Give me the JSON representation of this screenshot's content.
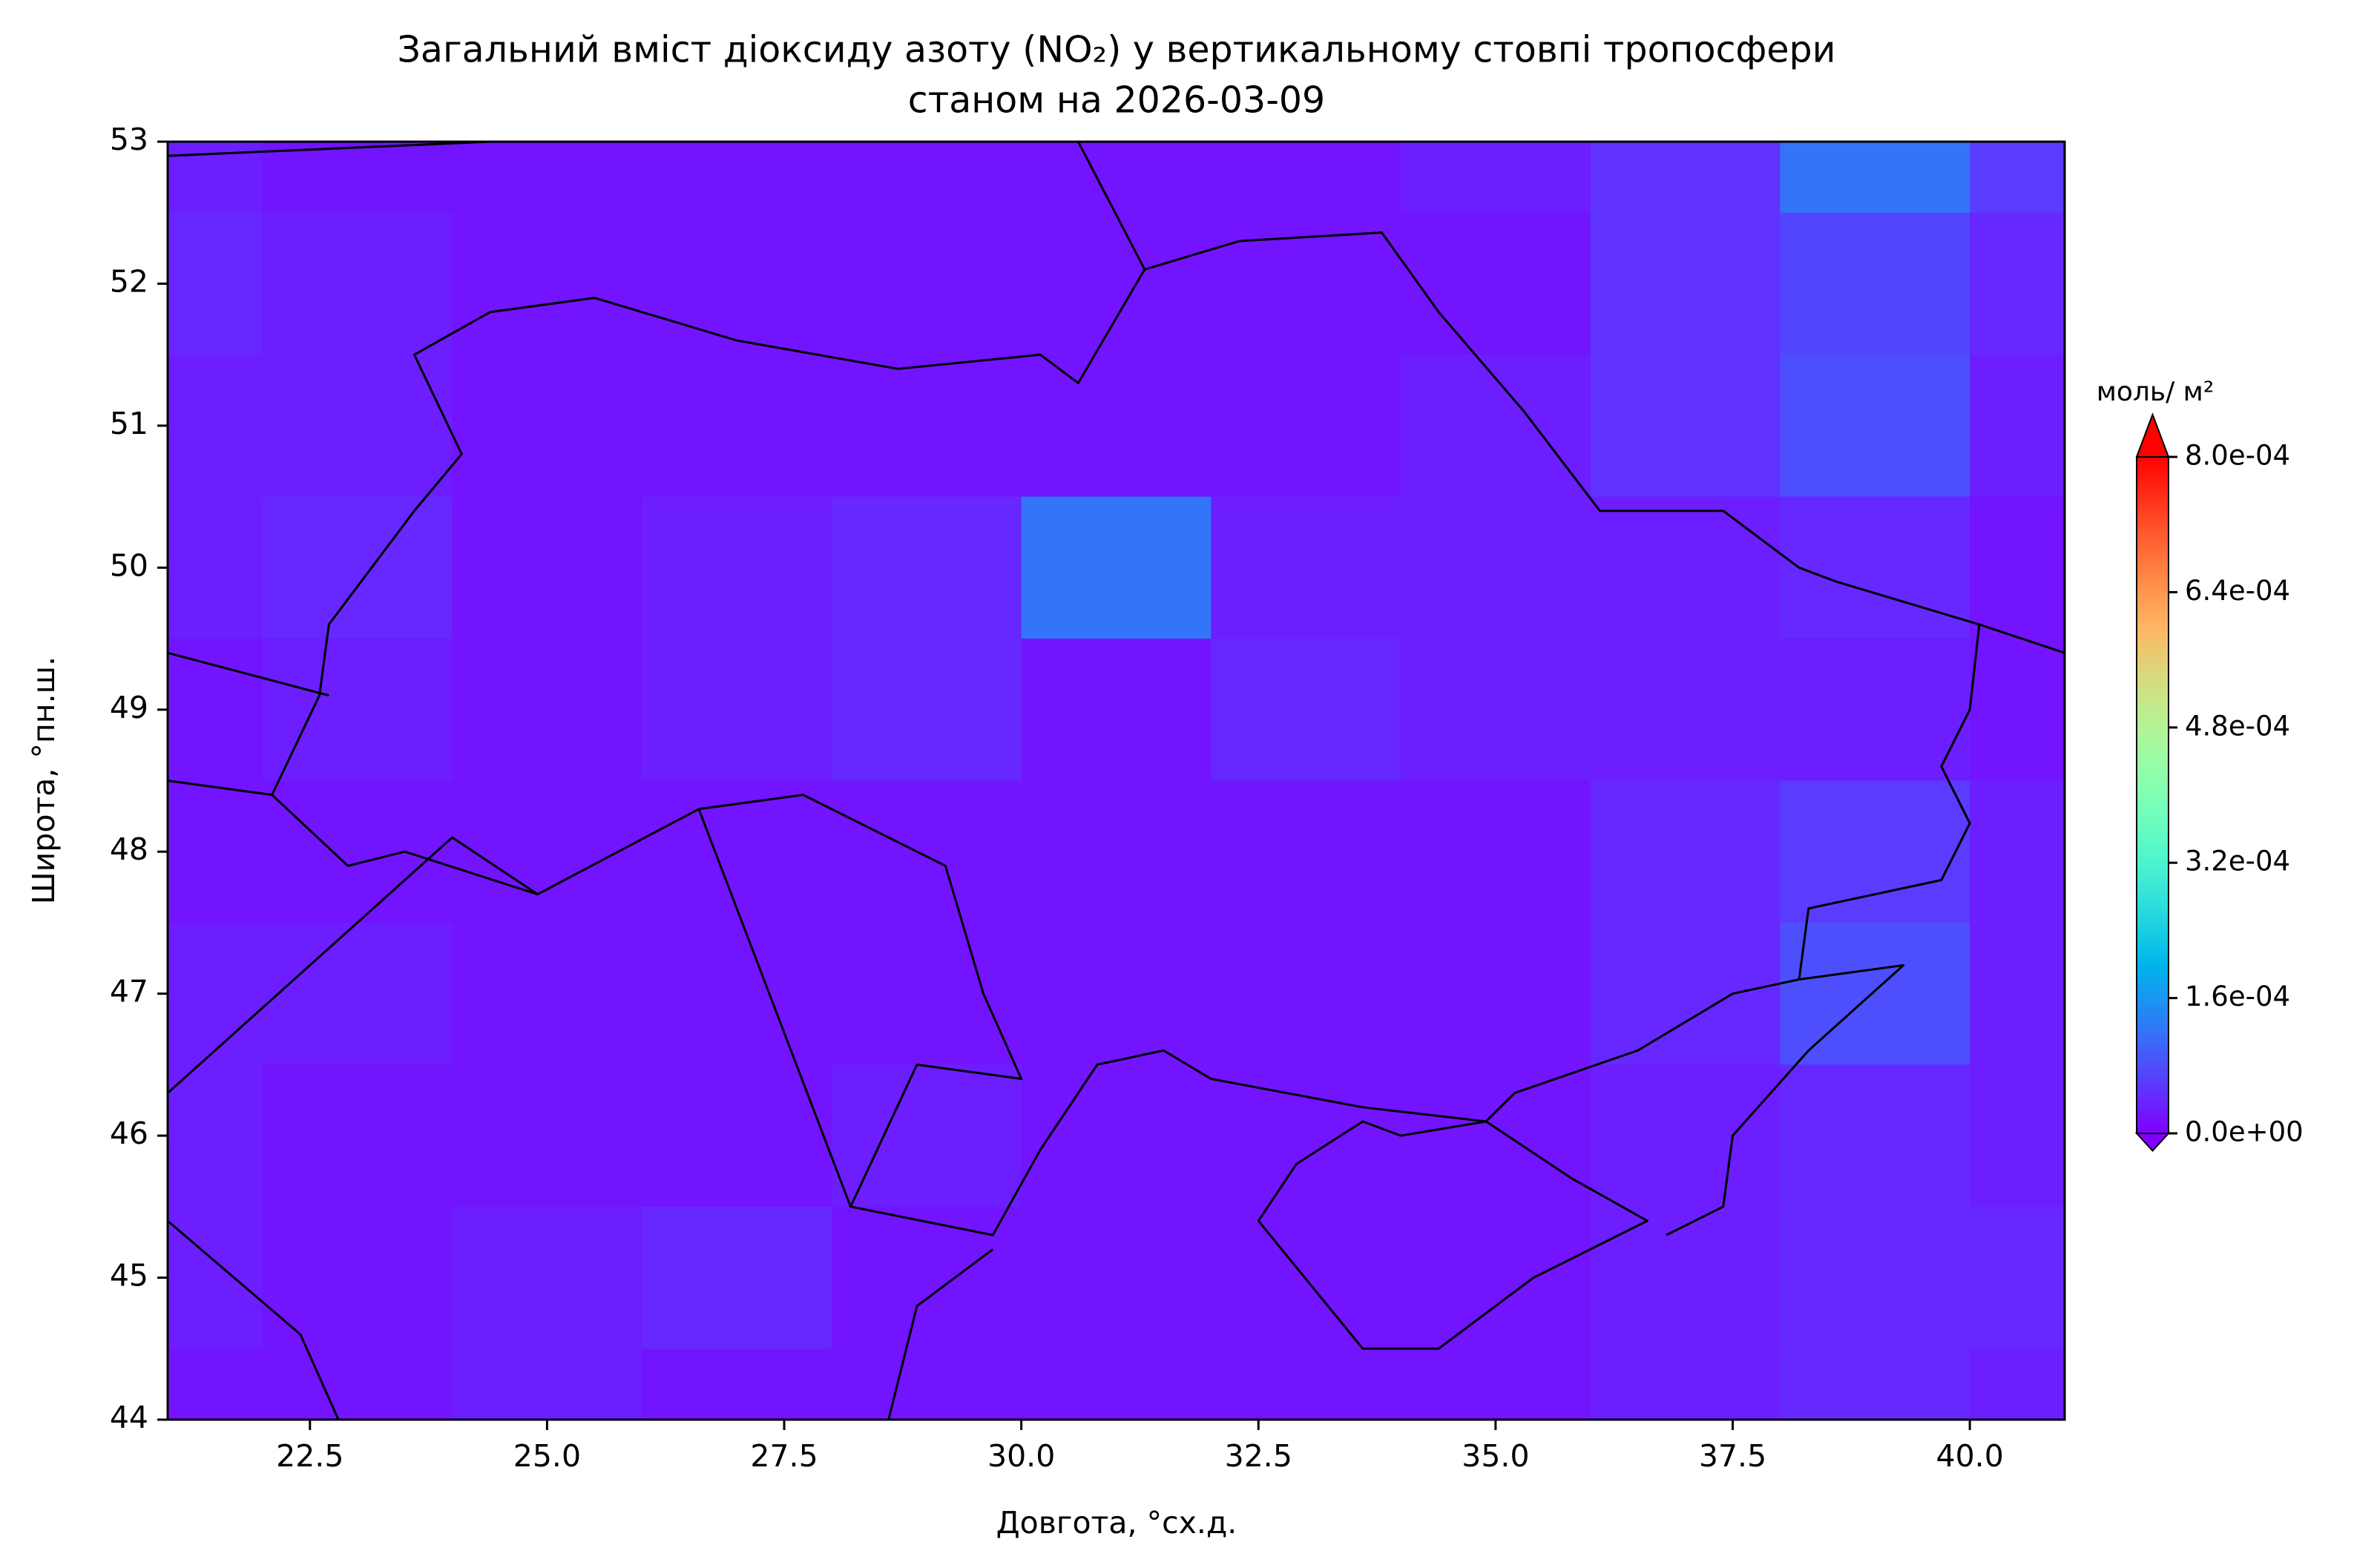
{
  "chart_data": {
    "type": "contour",
    "title": "Загальний вміст діоксиду азоту (NO₂) у вертикальному стовпі тропосфери",
    "subtitle": "станом на 2026-03-09",
    "xlabel": "Довгота, °сх.д.",
    "ylabel": "Широта, °пн.ш.",
    "colorbar_label": "моль/ м²",
    "colormap": "rainbow",
    "xlim": [
      21,
      41
    ],
    "ylim": [
      44,
      53
    ],
    "xticks": [
      22.5,
      {
        "value": 25,
        "label": "25.0"
      },
      27.5,
      {
        "value": 30,
        "label": "30.0"
      },
      32.5,
      {
        "value": 35,
        "label": "35.0"
      },
      37.5,
      {
        "value": 40,
        "label": "40.0"
      }
    ],
    "yticks": [
      44,
      45,
      46,
      47,
      48,
      49,
      50,
      51,
      52,
      53
    ],
    "clim": [
      0,
      0.0008
    ],
    "cticks": [
      {
        "value": 0,
        "label": "0.0e+00"
      },
      {
        "value": 0.00016,
        "label": "1.6e-04"
      },
      {
        "value": 0.00032,
        "label": "3.2e-04"
      },
      {
        "value": 0.00048,
        "label": "4.8e-04"
      },
      {
        "value": 0.00064,
        "label": "6.4e-04"
      },
      {
        "value": 0.0008,
        "label": "8.0e-04"
      }
    ],
    "lon": [
      21,
      23,
      25,
      27,
      29,
      31,
      33,
      35,
      37,
      39,
      41
    ],
    "lat": [
      53,
      52,
      51,
      50,
      49,
      48,
      47,
      46,
      45,
      44
    ],
    "z": [
      [
        3e-05,
        2e-05,
        2e-05,
        2e-05,
        2e-05,
        2e-05,
        2e-05,
        3e-05,
        5e-05,
        0.00012,
        6e-05
      ],
      [
        4e-05,
        3e-05,
        2e-05,
        2e-05,
        2e-05,
        2e-05,
        2e-05,
        2e-05,
        5e-05,
        7e-05,
        4e-05
      ],
      [
        3e-05,
        3e-05,
        2e-05,
        2e-05,
        2e-05,
        2e-05,
        2e-05,
        3e-05,
        5e-05,
        8e-05,
        3e-05
      ],
      [
        3e-05,
        4e-05,
        2e-05,
        3e-05,
        4e-05,
        0.00012,
        3e-05,
        3e-05,
        3e-05,
        4e-05,
        2e-05
      ],
      [
        2e-05,
        3e-05,
        2e-05,
        3e-05,
        4e-05,
        2e-05,
        4e-05,
        3e-05,
        3e-05,
        3e-05,
        2e-05
      ],
      [
        2e-05,
        2e-05,
        2e-05,
        2e-05,
        2e-05,
        2e-05,
        2e-05,
        2e-05,
        4e-05,
        6e-05,
        3e-05
      ],
      [
        3e-05,
        3e-05,
        2e-05,
        2e-05,
        2e-05,
        2e-05,
        2e-05,
        2e-05,
        4e-05,
        8e-05,
        3e-05
      ],
      [
        3e-05,
        2e-05,
        2e-05,
        2e-05,
        3e-05,
        2e-05,
        2e-05,
        2e-05,
        3e-05,
        4e-05,
        3e-05
      ],
      [
        3e-05,
        2e-05,
        3e-05,
        4e-05,
        2e-05,
        2e-05,
        2e-05,
        2e-05,
        3e-05,
        4e-05,
        4e-05
      ],
      [
        2e-05,
        2e-05,
        3e-05,
        2e-05,
        2e-05,
        2e-05,
        2e-05,
        2e-05,
        3e-05,
        4e-05,
        3e-05
      ]
    ]
  }
}
